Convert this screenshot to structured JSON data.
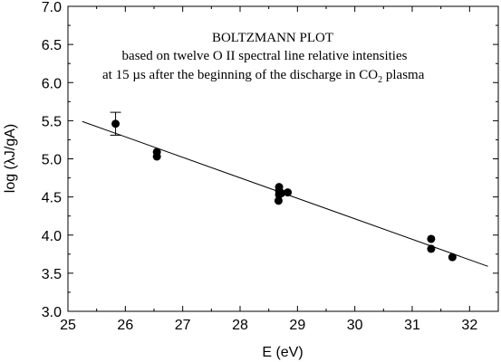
{
  "chart_data": {
    "type": "scatter",
    "annotation": {
      "line1": "BOLTZMANN PLOT",
      "line2": "based on twelve O II spectral line relative intensities",
      "line3_pre": "at 15 µs after the beginning of the discharge in CO",
      "line3_sub": "2",
      "line3_post": " plasma"
    },
    "xlabel": "E (eV)",
    "ylabel": "log (λJ/gA)",
    "xlim": [
      25,
      32.5
    ],
    "ylim": [
      3.0,
      7.0
    ],
    "x_ticks": [
      "25",
      "26",
      "27",
      "28",
      "29",
      "30",
      "31",
      "32"
    ],
    "y_ticks": [
      "3.0",
      "3.5",
      "4.0",
      "4.5",
      "5.0",
      "5.5",
      "6.0",
      "6.5",
      "7.0"
    ],
    "grid": false,
    "points": [
      {
        "x": 25.83,
        "y": 5.46,
        "yerr": 0.15
      },
      {
        "x": 26.55,
        "y": 5.09
      },
      {
        "x": 26.55,
        "y": 5.03
      },
      {
        "x": 28.68,
        "y": 4.63
      },
      {
        "x": 28.68,
        "y": 4.58
      },
      {
        "x": 28.68,
        "y": 4.53
      },
      {
        "x": 28.67,
        "y": 4.45
      },
      {
        "x": 28.72,
        "y": 4.55
      },
      {
        "x": 28.83,
        "y": 4.56
      },
      {
        "x": 31.33,
        "y": 3.95
      },
      {
        "x": 31.33,
        "y": 3.82
      },
      {
        "x": 31.7,
        "y": 3.71
      }
    ],
    "fit_line": {
      "x": [
        25.25,
        32.32
      ],
      "y": [
        5.49,
        3.59
      ]
    }
  }
}
